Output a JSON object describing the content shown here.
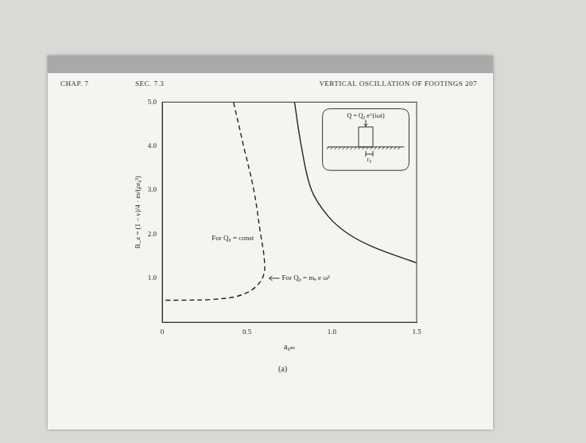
{
  "chart_data": {
    "type": "line",
    "header": {
      "chapter": "CHAP. 7",
      "section": "SEC. 7.3",
      "running_head": "VERTICAL OSCILLATION OF FOOTINGS",
      "page": "207"
    },
    "caption": "(a)",
    "x_label": "a₀ₘ",
    "y_label": "B_z = (1 − ν)/4 · m/(ρr₀³)",
    "xlim": [
      0,
      1.5
    ],
    "xticks": [
      0,
      0.5,
      {
        "value": 1,
        "label": "1.0"
      },
      1.5
    ],
    "ylim": [
      0,
      5
    ],
    "yticks": [
      {
        "value": 1,
        "label": "1.0"
      },
      {
        "value": 2,
        "label": "2.0"
      },
      {
        "value": 3,
        "label": "3.0"
      },
      {
        "value": 4,
        "label": "4.0"
      },
      {
        "value": 5,
        "label": "5.0"
      }
    ],
    "grid": false,
    "series": [
      {
        "name": "For Q₀ = const",
        "color": "#222222",
        "line_style": "dashed",
        "x": [
          0.02,
          0.1,
          0.3,
          0.45,
          0.55,
          0.6,
          0.6,
          0.58,
          0.54,
          0.48,
          0.42
        ],
        "values": [
          0.5,
          0.5,
          0.52,
          0.6,
          0.8,
          1.1,
          1.5,
          2.0,
          3.0,
          4.0,
          5.0
        ]
      },
      {
        "name": "For Q₀ = mₑ e ω²",
        "color": "#222222",
        "line_style": "solid",
        "x": [
          0.78,
          0.82,
          0.88,
          0.98,
          1.1,
          1.25,
          1.5
        ],
        "values": [
          5.0,
          4.0,
          3.0,
          2.4,
          2.0,
          1.7,
          1.35
        ]
      }
    ],
    "inset": {
      "force_label": "Q = Q₀ e^(iωt)",
      "radius_label": "r₀"
    }
  }
}
